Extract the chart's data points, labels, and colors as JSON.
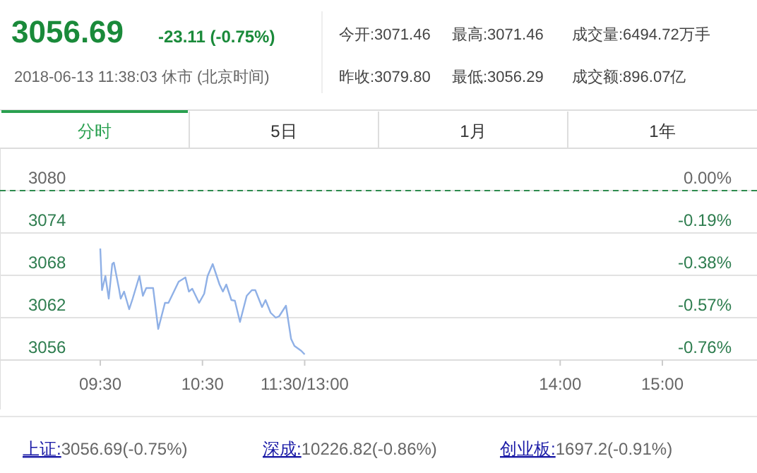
{
  "chart_data": {
    "type": "line",
    "title": "3056.69",
    "annotations": [
      "-23.11 (-0.75%)",
      "2018-06-13 11:38:03 休市 (北京时间)",
      "今开:3071.46",
      "最高:3071.46",
      "成交量:6494.72万手",
      "昨收:3079.80",
      "最低:3056.29",
      "成交额:896.07亿",
      "分时",
      "5日",
      "1月",
      "1年",
      "上证:3056.69(-0.75%)",
      "深成:10226.82(-0.86%)",
      "创业板:1697.2(-0.91%)"
    ],
    "series": [
      {
        "color": "#8fb0e6",
        "x": [
          9.5,
          9.517,
          9.55,
          9.583,
          9.617,
          9.633,
          9.683,
          9.7,
          9.733,
          9.783,
          9.817,
          9.883,
          9.917,
          9.95,
          10.017,
          10.067,
          10.133,
          10.167,
          10.267,
          10.333,
          10.367,
          10.4,
          10.467,
          10.517,
          10.55,
          10.6,
          10.667,
          10.7,
          10.733,
          10.783,
          10.817,
          10.867,
          10.933,
          10.983,
          11.017,
          11.083,
          11.117,
          11.167,
          11.217,
          11.25,
          11.317,
          11.367,
          11.4,
          11.467,
          11.5
        ],
        "values": [
          3071.8,
          3065.9,
          3067.9,
          3064.7,
          3069.6,
          3069.8,
          3066.1,
          3064.7,
          3065.7,
          3063.2,
          3064.7,
          3067.9,
          3065.1,
          3066.2,
          3066.2,
          3060.4,
          3064.1,
          3064.1,
          3067.1,
          3067.7,
          3065.7,
          3066.1,
          3064.1,
          3065.4,
          3067.9,
          3069.6,
          3066.7,
          3065.7,
          3066.7,
          3064.5,
          3064.4,
          3061.4,
          3065.1,
          3065.9,
          3065.9,
          3063.5,
          3064.5,
          3062.7,
          3062.0,
          3062.2,
          3063.7,
          3059.0,
          3058.0,
          3057.3,
          3056.8
        ]
      }
    ],
    "xlim": [
      9.5,
      15
    ],
    "xticks": [
      {
        "value": 9.5,
        "label": "09:30"
      },
      {
        "value": 10.5,
        "label": "10:30"
      },
      {
        "value": 11.5,
        "label": "11:30/13:00"
      },
      {
        "value": 14,
        "label": "14:00"
      },
      {
        "value": 15,
        "label": "15:00"
      }
    ],
    "ylim": [
      3056,
      3080
    ],
    "yticks": [
      3056,
      3062,
      3068,
      3074,
      3080
    ],
    "y2lim": [
      -0.76,
      0
    ],
    "y2ticks": [
      {
        "value": -0.76,
        "label": "-0.76%"
      },
      {
        "value": -0.57,
        "label": "-0.57%"
      },
      {
        "value": -0.38,
        "label": "-0.38%"
      },
      {
        "value": -0.19,
        "label": "-0.19%"
      },
      {
        "value": 0,
        "label": "0.00%"
      }
    ],
    "ref_lines": [
      {
        "axis": "y",
        "value": 3080,
        "color": "#2e8b4e",
        "line_style": "dashed"
      }
    ],
    "grid": "y"
  }
}
